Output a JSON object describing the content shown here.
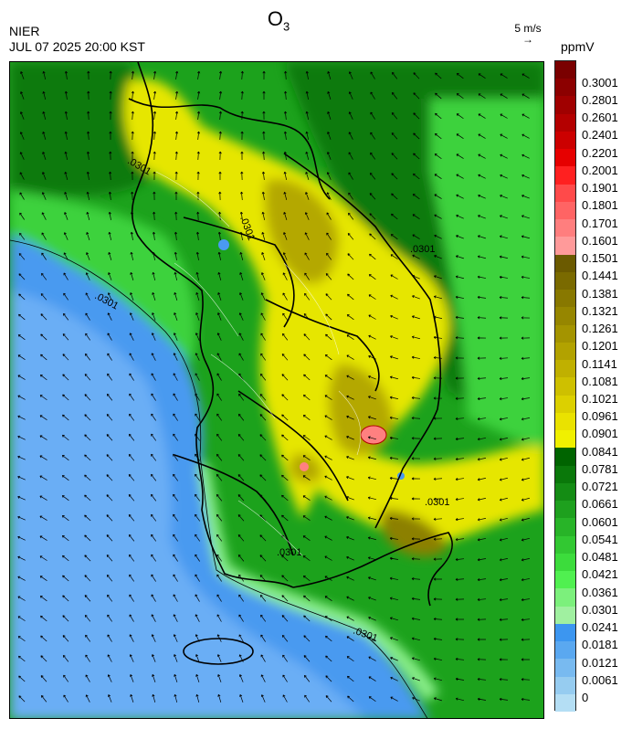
{
  "header": {
    "agency": "NIER",
    "timestamp": "JUL 07 2025 20:00 KST",
    "title_main": "O",
    "title_sub": "3",
    "wind_reference": "5 m/s",
    "unit": "ppmV"
  },
  "map": {
    "contour_label": ".0301",
    "contour_labels_count": 7,
    "field_colors": {
      "sea_low": "#4a9af0",
      "sea_mid": "#6aaef5",
      "coast_light": "#8cf08c",
      "green_dark": "#0a7a0a",
      "green_mid": "#1ca21c",
      "green_bright": "#3cd23c",
      "yellow": "#e6e600",
      "olive": "#b4a800",
      "olive_dark": "#8c8000",
      "pink": "#ff8080"
    }
  },
  "colorbar": {
    "labels": [
      "0.3001",
      "0.2801",
      "0.2601",
      "0.2401",
      "0.2201",
      "0.2001",
      "0.1901",
      "0.1801",
      "0.1701",
      "0.1601",
      "0.1501",
      "0.1441",
      "0.1381",
      "0.1321",
      "0.1261",
      "0.1201",
      "0.1141",
      "0.1081",
      "0.1021",
      "0.0961",
      "0.0901",
      "0.0841",
      "0.0781",
      "0.0721",
      "0.0661",
      "0.0601",
      "0.0541",
      "0.0481",
      "0.0421",
      "0.0361",
      "0.0301",
      "0.0241",
      "0.0181",
      "0.0121",
      "0.0061",
      "0"
    ],
    "colors": [
      "#7a0000",
      "#8c0000",
      "#a00000",
      "#b40000",
      "#cc0000",
      "#e60000",
      "#ff2020",
      "#ff4a4a",
      "#ff6464",
      "#ff7e7e",
      "#ff9a9a",
      "#6b5a00",
      "#7a6a00",
      "#887800",
      "#968600",
      "#a49400",
      "#b2a200",
      "#c0b000",
      "#cec000",
      "#dcd000",
      "#eae200",
      "#f0f000",
      "#006400",
      "#0a780a",
      "#148c14",
      "#1ea01e",
      "#28b428",
      "#32c832",
      "#3cdc3c",
      "#50f050",
      "#7cf07c",
      "#a0f0a0",
      "#3c96f0",
      "#5aa8f0",
      "#78baf0",
      "#96ccf0",
      "#b4def4"
    ]
  }
}
